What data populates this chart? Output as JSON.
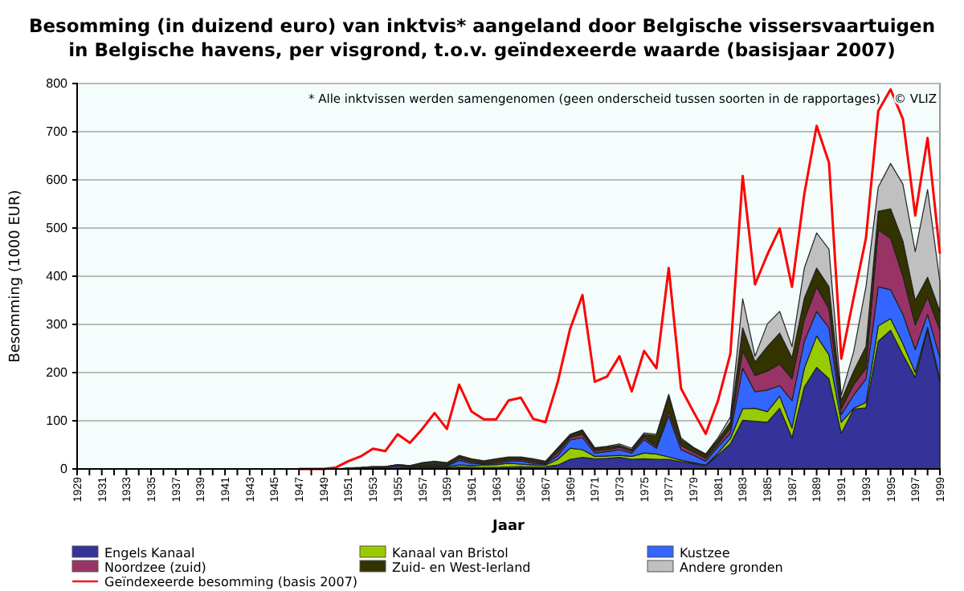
{
  "chart_data": {
    "type": "area",
    "stacked": true,
    "title": "Besomming (in duizend euro) van inktvis* aangeland door Belgische vissersvaartuigen\nin Belgische havens, per visgrond, t.o.v. geïndexeerde waarde (basisjaar 2007)",
    "xlabel": "Jaar",
    "ylabel": "Besomming (1000 EUR)",
    "annotations": [
      "* Alle inktvissen werden samengenomen (geen onderscheid tussen soorten in de rapportages)",
      "© VLIZ"
    ],
    "x": [
      1929,
      1930,
      1931,
      1932,
      1933,
      1934,
      1935,
      1936,
      1937,
      1938,
      1939,
      1940,
      1941,
      1942,
      1943,
      1944,
      1945,
      1946,
      1947,
      1948,
      1949,
      1950,
      1951,
      1952,
      1953,
      1954,
      1955,
      1956,
      1957,
      1958,
      1959,
      1960,
      1961,
      1962,
      1963,
      1964,
      1965,
      1966,
      1967,
      1968,
      1969,
      1970,
      1971,
      1972,
      1973,
      1974,
      1975,
      1976,
      1977,
      1978,
      1979,
      1980,
      1981,
      1982,
      1983,
      1984,
      1985,
      1986,
      1987,
      1988,
      1989,
      1990,
      1991,
      1992,
      1993,
      1994,
      1995,
      1996,
      1997,
      1998,
      1999
    ],
    "xlim": [
      1929,
      1999
    ],
    "xticks": [
      1929,
      {
        "value": 1930,
        "label": null
      },
      1931,
      {
        "value": 1932,
        "label": null
      },
      1933,
      {
        "value": 1934,
        "label": null
      },
      1935,
      {
        "value": 1936,
        "label": null
      },
      1937,
      {
        "value": 1938,
        "label": null
      },
      1939,
      {
        "value": 1940,
        "label": null
      },
      1941,
      {
        "value": 1942,
        "label": null
      },
      1943,
      {
        "value": 1944,
        "label": null
      },
      1945,
      {
        "value": 1946,
        "label": null
      },
      1947,
      {
        "value": 1948,
        "label": null
      },
      1949,
      {
        "value": 1950,
        "label": null
      },
      1951,
      {
        "value": 1952,
        "label": null
      },
      1953,
      {
        "value": 1954,
        "label": null
      },
      1955,
      {
        "value": 1956,
        "label": null
      },
      1957,
      {
        "value": 1958,
        "label": null
      },
      1959,
      {
        "value": 1960,
        "label": null
      },
      1961,
      {
        "value": 1962,
        "label": null
      },
      1963,
      {
        "value": 1964,
        "label": null
      },
      1965,
      {
        "value": 1966,
        "label": null
      },
      1967,
      {
        "value": 1968,
        "label": null
      },
      1969,
      {
        "value": 1970,
        "label": null
      },
      1971,
      {
        "value": 1972,
        "label": null
      },
      1973,
      {
        "value": 1974,
        "label": null
      },
      1975,
      {
        "value": 1976,
        "label": null
      },
      1977,
      {
        "value": 1978,
        "label": null
      },
      1979,
      {
        "value": 1980,
        "label": null
      },
      1981,
      {
        "value": 1982,
        "label": null
      },
      1983,
      {
        "value": 1984,
        "label": null
      },
      1985,
      {
        "value": 1986,
        "label": null
      },
      1987,
      {
        "value": 1988,
        "label": null
      },
      1989,
      {
        "value": 1990,
        "label": null
      },
      1991,
      {
        "value": 1992,
        "label": null
      },
      1993,
      {
        "value": 1994,
        "label": null
      },
      1995,
      {
        "value": 1996,
        "label": null
      },
      1997,
      {
        "value": 1998,
        "label": null
      },
      1999
    ],
    "ylim": [
      0,
      800
    ],
    "yticks": [
      0,
      100,
      200,
      300,
      400,
      500,
      600,
      700,
      800
    ],
    "grid": "y",
    "legend": "bottom",
    "series": [
      {
        "name": "Engels Kanaal",
        "color": "#333399",
        "values": [
          0,
          0,
          0,
          0,
          0,
          0,
          0,
          0,
          0,
          0,
          0,
          0,
          0,
          0,
          0,
          0,
          0,
          0,
          0,
          0,
          0,
          0,
          1,
          1,
          1,
          1,
          2,
          1,
          2,
          2,
          2,
          4,
          3,
          3,
          3,
          4,
          5,
          4,
          5,
          8,
          20,
          24,
          21,
          22,
          24,
          20,
          21,
          20,
          20,
          15,
          11,
          7,
          29,
          52,
          101,
          99,
          97,
          126,
          65,
          170,
          211,
          187,
          74,
          124,
          127,
          265,
          288,
          237,
          190,
          288,
          181
        ]
      },
      {
        "name": "Kanaal van Bristol",
        "color": "#99cc00",
        "values": [
          0,
          0,
          0,
          0,
          0,
          0,
          0,
          0,
          0,
          0,
          0,
          0,
          0,
          0,
          0,
          0,
          0,
          0,
          0,
          0,
          0,
          0,
          0,
          0,
          0,
          0,
          0,
          1,
          1,
          2,
          2,
          4,
          4,
          5,
          6,
          8,
          5,
          4,
          3,
          12,
          23,
          16,
          5,
          5,
          4,
          6,
          12,
          11,
          5,
          3,
          2,
          1,
          4,
          11,
          24,
          27,
          22,
          25,
          20,
          39,
          65,
          50,
          23,
          2,
          11,
          32,
          24,
          23,
          10,
          6,
          6
        ]
      },
      {
        "name": "Kustzee",
        "color": "#3366ff",
        "values": [
          0,
          0,
          0,
          0,
          0,
          0,
          0,
          0,
          0,
          0,
          0,
          0,
          0,
          0,
          0,
          0,
          0,
          0,
          0,
          0,
          0,
          0,
          0,
          1,
          1,
          2,
          4,
          2,
          2,
          2,
          2,
          10,
          5,
          2,
          3,
          4,
          7,
          4,
          2,
          8,
          17,
          25,
          7,
          9,
          12,
          7,
          28,
          12,
          85,
          22,
          16,
          8,
          13,
          11,
          84,
          34,
          45,
          22,
          57,
          56,
          51,
          56,
          16,
          27,
          49,
          81,
          60,
          61,
          48,
          27,
          44
        ]
      },
      {
        "name": "Noordzee (zuid)",
        "color": "#993366",
        "values": [
          0,
          0,
          0,
          0,
          0,
          0,
          0,
          0,
          0,
          0,
          0,
          0,
          0,
          0,
          0,
          0,
          0,
          0,
          0,
          0,
          0,
          0,
          0,
          0,
          1,
          1,
          1,
          1,
          2,
          3,
          2,
          4,
          3,
          2,
          3,
          3,
          3,
          3,
          2,
          7,
          5,
          7,
          5,
          4,
          5,
          4,
          5,
          4,
          9,
          9,
          6,
          6,
          6,
          11,
          36,
          34,
          39,
          45,
          45,
          45,
          51,
          39,
          12,
          22,
          22,
          118,
          107,
          79,
          51,
          36,
          57
        ]
      },
      {
        "name": "Zuid- en West-Ierland",
        "color": "#333300",
        "values": [
          0,
          0,
          0,
          0,
          0,
          0,
          0,
          0,
          0,
          0,
          0,
          0,
          0,
          0,
          0,
          0,
          0,
          0,
          0,
          0,
          0,
          0,
          1,
          1,
          2,
          1,
          2,
          2,
          5,
          6,
          4,
          5,
          5,
          4,
          5,
          5,
          4,
          5,
          3,
          7,
          5,
          7,
          4,
          5,
          4,
          3,
          6,
          22,
          32,
          12,
          8,
          7,
          9,
          12,
          48,
          28,
          51,
          64,
          44,
          44,
          39,
          46,
          17,
          28,
          45,
          39,
          61,
          73,
          51,
          41,
          39
        ]
      },
      {
        "name": "Andere gronden",
        "color": "#c0c0c0",
        "values": [
          0,
          0,
          0,
          0,
          0,
          0,
          0,
          0,
          0,
          0,
          0,
          0,
          0,
          0,
          0,
          0,
          0,
          0,
          0,
          0,
          0,
          0,
          0,
          0,
          0,
          0,
          0,
          0,
          1,
          1,
          1,
          1,
          1,
          1,
          1,
          1,
          1,
          1,
          1,
          2,
          2,
          2,
          2,
          2,
          3,
          3,
          3,
          3,
          4,
          3,
          2,
          2,
          4,
          11,
          60,
          12,
          47,
          45,
          23,
          63,
          73,
          78,
          11,
          40,
          124,
          50,
          94,
          118,
          101,
          182,
          62
        ]
      },
      {
        "name": "Geïndexeerde besomming (basis 2007)",
        "type": "line",
        "color": "#ff0000",
        "values": [
          null,
          null,
          null,
          null,
          null,
          null,
          null,
          null,
          null,
          null,
          null,
          null,
          null,
          null,
          null,
          null,
          null,
          null,
          0,
          0,
          0,
          3,
          16,
          26,
          42,
          37,
          72,
          54,
          83,
          116,
          83,
          175,
          119,
          103,
          103,
          142,
          148,
          104,
          97,
          181,
          291,
          361,
          181,
          192,
          234,
          161,
          245,
          209,
          417,
          167,
          119,
          73,
          142,
          239,
          608,
          383,
          445,
          499,
          378,
          571,
          712,
          636,
          229,
          355,
          479,
          743,
          788,
          726,
          526,
          687,
          447
        ]
      }
    ]
  }
}
